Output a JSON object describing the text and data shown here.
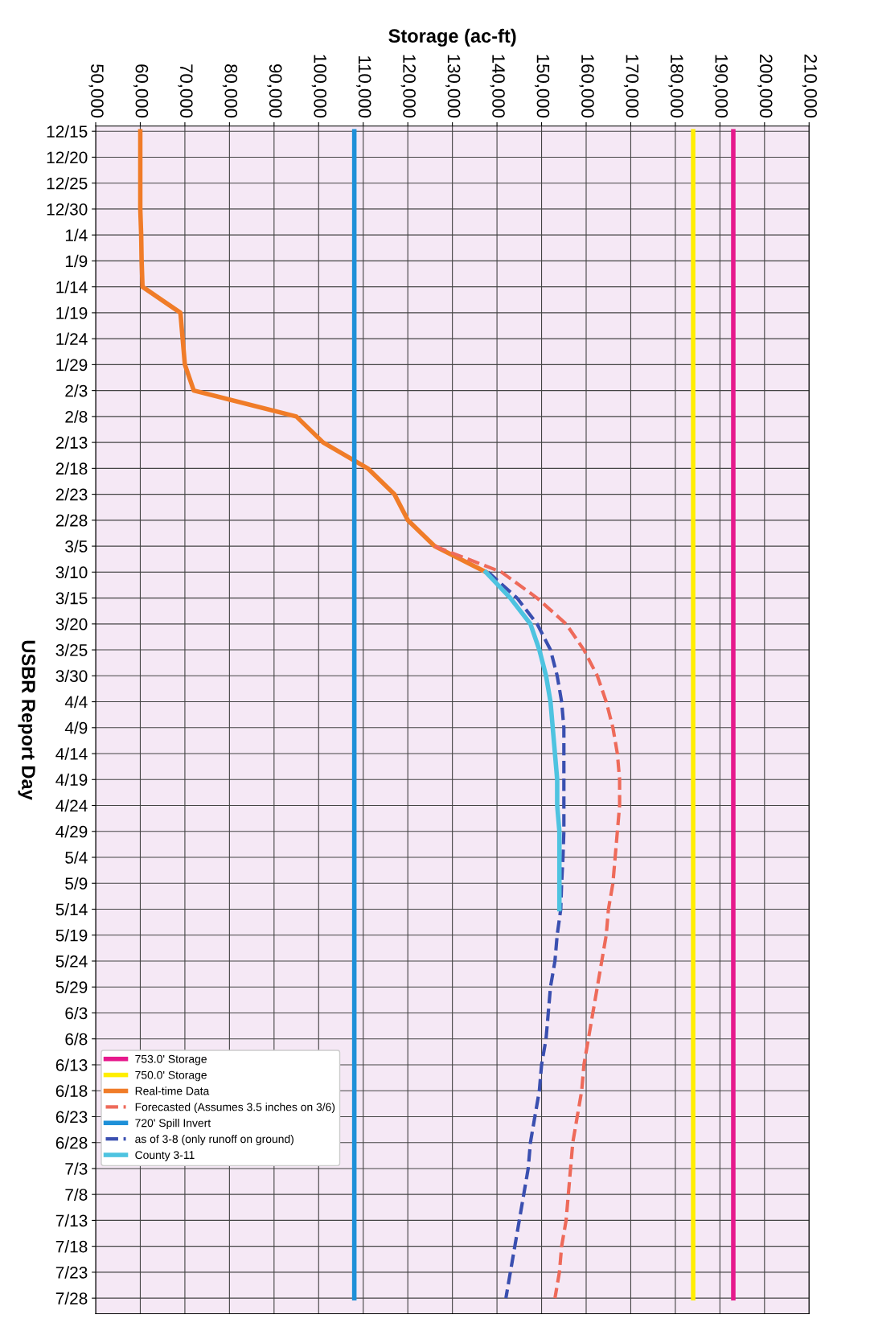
{
  "chart_data": {
    "type": "line",
    "orientation": "horizontal",
    "xlabel": "Storage (ac-ft)",
    "ylabel": "USBR Report Day",
    "categories": [
      "12/15",
      "12/20",
      "12/25",
      "12/30",
      "1/4",
      "1/9",
      "1/14",
      "1/19",
      "1/24",
      "1/29",
      "2/3",
      "2/8",
      "2/13",
      "2/18",
      "2/23",
      "2/28",
      "3/5",
      "3/10",
      "3/15",
      "3/20",
      "3/25",
      "3/30",
      "4/4",
      "4/9",
      "4/14",
      "4/19",
      "4/24",
      "4/29",
      "5/4",
      "5/9",
      "5/14",
      "5/19",
      "5/24",
      "5/29",
      "6/3",
      "6/8",
      "6/13",
      "6/18",
      "6/23",
      "6/28",
      "7/3",
      "7/8",
      "7/13",
      "7/18",
      "7/23",
      "7/28"
    ],
    "xlim": [
      50000,
      210000
    ],
    "xticks": [
      {
        "value": 50000,
        "label": "50,000"
      },
      {
        "value": 60000,
        "label": "60,000"
      },
      {
        "value": 70000,
        "label": "70,000"
      },
      {
        "value": 80000,
        "label": "80,000"
      },
      {
        "value": 90000,
        "label": "90,000"
      },
      {
        "value": 100000,
        "label": "100,000"
      },
      {
        "value": 110000,
        "label": "110,000"
      },
      {
        "value": 120000,
        "label": "120,000"
      },
      {
        "value": 130000,
        "label": "130,000"
      },
      {
        "value": 140000,
        "label": "140,000"
      },
      {
        "value": 150000,
        "label": "150,000"
      },
      {
        "value": 160000,
        "label": "160,000"
      },
      {
        "value": 170000,
        "label": "170,000"
      },
      {
        "value": 180000,
        "label": "180,000"
      },
      {
        "value": 190000,
        "label": "190,000"
      },
      {
        "value": 200000,
        "label": "200,000"
      },
      {
        "value": 210000,
        "label": "210,000"
      }
    ],
    "grid": true,
    "legend": "bottom left",
    "series": [
      {
        "name": "753.0' Storage",
        "color": "#e6198c",
        "line_style": "solid",
        "values": [
          193000,
          193000,
          193000,
          193000,
          193000,
          193000,
          193000,
          193000,
          193000,
          193000,
          193000,
          193000,
          193000,
          193000,
          193000,
          193000,
          193000,
          193000,
          193000,
          193000,
          193000,
          193000,
          193000,
          193000,
          193000,
          193000,
          193000,
          193000,
          193000,
          193000,
          193000,
          193000,
          193000,
          193000,
          193000,
          193000,
          193000,
          193000,
          193000,
          193000,
          193000,
          193000,
          193000,
          193000,
          193000,
          193000
        ]
      },
      {
        "name": "750.0' Storage",
        "color": "#ffee00",
        "line_style": "solid",
        "values": [
          184000,
          184000,
          184000,
          184000,
          184000,
          184000,
          184000,
          184000,
          184000,
          184000,
          184000,
          184000,
          184000,
          184000,
          184000,
          184000,
          184000,
          184000,
          184000,
          184000,
          184000,
          184000,
          184000,
          184000,
          184000,
          184000,
          184000,
          184000,
          184000,
          184000,
          184000,
          184000,
          184000,
          184000,
          184000,
          184000,
          184000,
          184000,
          184000,
          184000,
          184000,
          184000,
          184000,
          184000,
          184000,
          184000
        ]
      },
      {
        "name": "Real-time Data",
        "color": "#f07c28",
        "line_style": "solid",
        "values": [
          60000,
          60000,
          60000,
          60000,
          60200,
          60300,
          60500,
          69000,
          69500,
          70000,
          72000,
          95000,
          101000,
          111000,
          117000,
          120000,
          126000,
          137500,
          null,
          null,
          null,
          null,
          null,
          null,
          null,
          null,
          null,
          null,
          null,
          null,
          null,
          null,
          null,
          null,
          null,
          null,
          null,
          null,
          null,
          null,
          null,
          null,
          null,
          null,
          null,
          null
        ]
      },
      {
        "name": "Forecasted (Assumes 3.5 inches on 3/6)",
        "color": "#ee6a5a",
        "line_style": "dashed",
        "values": [
          null,
          null,
          null,
          null,
          null,
          null,
          null,
          null,
          null,
          null,
          null,
          null,
          null,
          null,
          null,
          null,
          126000,
          141000,
          149000,
          155500,
          159500,
          162500,
          164500,
          166000,
          167000,
          167500,
          167500,
          167000,
          166500,
          166000,
          165000,
          164500,
          163500,
          162500,
          161500,
          160500,
          159500,
          159000,
          158000,
          157000,
          156500,
          156000,
          155500,
          154500,
          154000,
          153000
        ]
      },
      {
        "name": "720' Spill Invert",
        "color": "#1e90d8",
        "line_style": "solid",
        "values": [
          108000,
          108000,
          108000,
          108000,
          108000,
          108000,
          108000,
          108000,
          108000,
          108000,
          108000,
          108000,
          108000,
          108000,
          108000,
          108000,
          108000,
          108000,
          108000,
          108000,
          108000,
          108000,
          108000,
          108000,
          108000,
          108000,
          108000,
          108000,
          108000,
          108000,
          108000,
          108000,
          108000,
          108000,
          108000,
          108000,
          108000,
          108000,
          108000,
          108000,
          108000,
          108000,
          108000,
          108000,
          108000,
          108000
        ]
      },
      {
        "name": "as of 3-8 (only runoff on ground)",
        "color": "#3a4fb0",
        "line_style": "dashed",
        "values": [
          null,
          null,
          null,
          null,
          null,
          null,
          null,
          null,
          null,
          null,
          null,
          null,
          null,
          null,
          null,
          null,
          null,
          138000,
          144500,
          149000,
          152000,
          153500,
          154500,
          155000,
          155000,
          155000,
          155000,
          155000,
          154800,
          154500,
          154300,
          153500,
          153000,
          152000,
          151500,
          151000,
          150000,
          149500,
          148500,
          147500,
          147000,
          146000,
          145000,
          144000,
          143000,
          142000
        ]
      },
      {
        "name": "County 3-11",
        "color": "#4ec3e0",
        "line_style": "solid",
        "values": [
          null,
          null,
          null,
          null,
          null,
          null,
          null,
          null,
          null,
          null,
          null,
          null,
          null,
          null,
          null,
          null,
          null,
          137500,
          143000,
          147500,
          149500,
          151000,
          152000,
          152500,
          153000,
          153500,
          153500,
          154000,
          154000,
          154000,
          154000,
          null,
          null,
          null,
          null,
          null,
          null,
          null,
          null,
          null,
          null,
          null,
          null,
          null,
          null,
          null
        ]
      }
    ]
  }
}
